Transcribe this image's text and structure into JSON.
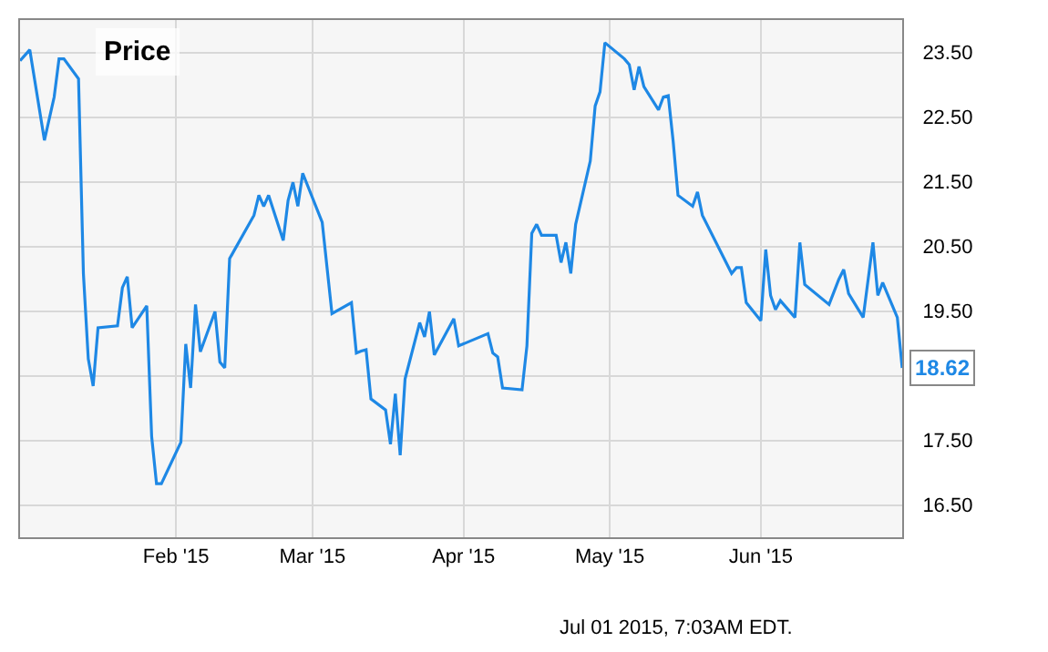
{
  "chart_data": {
    "type": "line",
    "title": "Price",
    "x": [
      "2014-12-31",
      "2015-01-02",
      "2015-01-05",
      "2015-01-07",
      "2015-01-08",
      "2015-01-09",
      "2015-01-12",
      "2015-01-13",
      "2015-01-14",
      "2015-01-15",
      "2015-01-16",
      "2015-01-20",
      "2015-01-21",
      "2015-01-22",
      "2015-01-23",
      "2015-01-26",
      "2015-01-27",
      "2015-01-28",
      "2015-01-29",
      "2015-02-02",
      "2015-02-03",
      "2015-02-04",
      "2015-02-05",
      "2015-02-06",
      "2015-02-09",
      "2015-02-10",
      "2015-02-11",
      "2015-02-12",
      "2015-02-17",
      "2015-02-18",
      "2015-02-19",
      "2015-02-20",
      "2015-02-23",
      "2015-02-24",
      "2015-02-25",
      "2015-02-26",
      "2015-02-27",
      "2015-03-03",
      "2015-03-05",
      "2015-03-09",
      "2015-03-10",
      "2015-03-11",
      "2015-03-12",
      "2015-03-13",
      "2015-03-16",
      "2015-03-17",
      "2015-03-18",
      "2015-03-19",
      "2015-03-20",
      "2015-03-23",
      "2015-03-24",
      "2015-03-25",
      "2015-03-26",
      "2015-03-30",
      "2015-03-31",
      "2015-04-06",
      "2015-04-07",
      "2015-04-08",
      "2015-04-09",
      "2015-04-13",
      "2015-04-14",
      "2015-04-15",
      "2015-04-16",
      "2015-04-17",
      "2015-04-20",
      "2015-04-21",
      "2015-04-22",
      "2015-04-23",
      "2015-04-24",
      "2015-04-27",
      "2015-04-28",
      "2015-04-29",
      "2015-04-30",
      "2015-05-04",
      "2015-05-05",
      "2015-05-06",
      "2015-05-07",
      "2015-05-08",
      "2015-05-11",
      "2015-05-12",
      "2015-05-13",
      "2015-05-14",
      "2015-05-15",
      "2015-05-18",
      "2015-05-19",
      "2015-05-20",
      "2015-05-26",
      "2015-05-27",
      "2015-05-28",
      "2015-05-29",
      "2015-06-01",
      "2015-06-02",
      "2015-06-03",
      "2015-06-04",
      "2015-06-05",
      "2015-06-08",
      "2015-06-09",
      "2015-06-10",
      "2015-06-15",
      "2015-06-17",
      "2015-06-18",
      "2015-06-19",
      "2015-06-22",
      "2015-06-24",
      "2015-06-25",
      "2015-06-26",
      "2015-06-29",
      "2015-06-30"
    ],
    "series": [
      {
        "color": "#1e88e5",
        "values": [
          23.37,
          23.54,
          22.14,
          22.81,
          23.4,
          23.4,
          23.09,
          20.08,
          18.76,
          18.34,
          19.24,
          19.27,
          19.86,
          20.03,
          19.24,
          19.58,
          17.56,
          16.83,
          16.83,
          17.47,
          18.99,
          18.31,
          19.6,
          18.87,
          19.49,
          18.71,
          18.62,
          20.31,
          20.98,
          21.29,
          21.12,
          21.29,
          20.59,
          21.21,
          21.49,
          21.12,
          21.63,
          20.87,
          19.46,
          19.63,
          18.85,
          18.88,
          18.9,
          18.14,
          17.97,
          17.44,
          18.22,
          17.27,
          18.45,
          19.32,
          19.1,
          19.49,
          18.82,
          19.38,
          18.96,
          19.15,
          18.85,
          18.79,
          18.31,
          18.28,
          18.96,
          20.7,
          20.84,
          20.67,
          20.67,
          20.25,
          20.56,
          20.08,
          20.84,
          21.82,
          22.67,
          22.89,
          23.65,
          23.4,
          23.31,
          22.92,
          23.28,
          22.97,
          22.61,
          22.81,
          22.83,
          22.13,
          21.29,
          21.12,
          21.34,
          20.98,
          20.08,
          20.17,
          20.17,
          19.63,
          19.35,
          20.45,
          19.74,
          19.52,
          19.66,
          19.4,
          20.56,
          19.91,
          19.6,
          19.99,
          20.14,
          19.77,
          19.4,
          20.56,
          19.74,
          19.94,
          19.4,
          18.62
        ]
      }
    ],
    "xlim": [
      "2014-12-31",
      "2015-06-30"
    ],
    "xticks": [
      {
        "value": "2015-02-01",
        "label": "Feb '15"
      },
      {
        "value": "2015-03-01",
        "label": "Mar '15"
      },
      {
        "value": "2015-04-01",
        "label": "Apr '15"
      },
      {
        "value": "2015-05-01",
        "label": "May '15"
      },
      {
        "value": "2015-06-01",
        "label": "Jun '15"
      }
    ],
    "ylim": [
      16.0,
      24.0
    ],
    "yticks": [
      {
        "value": 16.5,
        "label": "16.50"
      },
      {
        "value": 17.5,
        "label": "17.50"
      },
      {
        "value": 18.5,
        "label": null
      },
      {
        "value": 19.5,
        "label": "19.50"
      },
      {
        "value": 20.5,
        "label": "20.50"
      },
      {
        "value": 21.5,
        "label": "21.50"
      },
      {
        "value": 22.5,
        "label": "22.50"
      },
      {
        "value": 23.5,
        "label": "23.50"
      }
    ],
    "grid": true,
    "marker": "none",
    "line_style": "solid",
    "annotations": [
      {
        "text": "18.62",
        "x": "2015-06-30",
        "y": 18.62
      },
      "Jul 01 2015, 7:03AM EDT."
    ]
  }
}
